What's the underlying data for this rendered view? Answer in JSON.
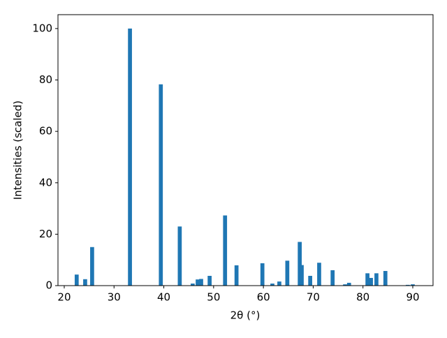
{
  "chart_data": {
    "type": "bar",
    "xlabel": "2θ (°)",
    "ylabel": "Intensities (scaled)",
    "x": [
      22.5,
      24.2,
      25.6,
      33.2,
      39.4,
      43.2,
      45.8,
      46.8,
      47.5,
      49.2,
      52.3,
      54.6,
      59.8,
      61.8,
      63.2,
      64.8,
      67.3,
      67.7,
      69.4,
      71.2,
      73.9,
      76.4,
      77.2,
      80.9,
      81.6,
      82.7,
      84.5,
      89.0,
      90.0
    ],
    "values": [
      4.3,
      2.5,
      15,
      100,
      78.3,
      23,
      0.8,
      2.4,
      2.6,
      3.8,
      27.3,
      7.9,
      8.7,
      0.8,
      1.6,
      9.7,
      17,
      8,
      3.8,
      8.9,
      6,
      0.5,
      1.1,
      4.8,
      3,
      4.8,
      5.7,
      0.3,
      0.5
    ],
    "color": "#1f77b4",
    "xlim": [
      18.74,
      94.07
    ],
    "ylim": [
      0,
      105.4
    ],
    "xticks": [
      20,
      30,
      40,
      50,
      60,
      70,
      80,
      90
    ],
    "yticks": [
      0,
      20,
      40,
      60,
      80,
      100
    ]
  }
}
